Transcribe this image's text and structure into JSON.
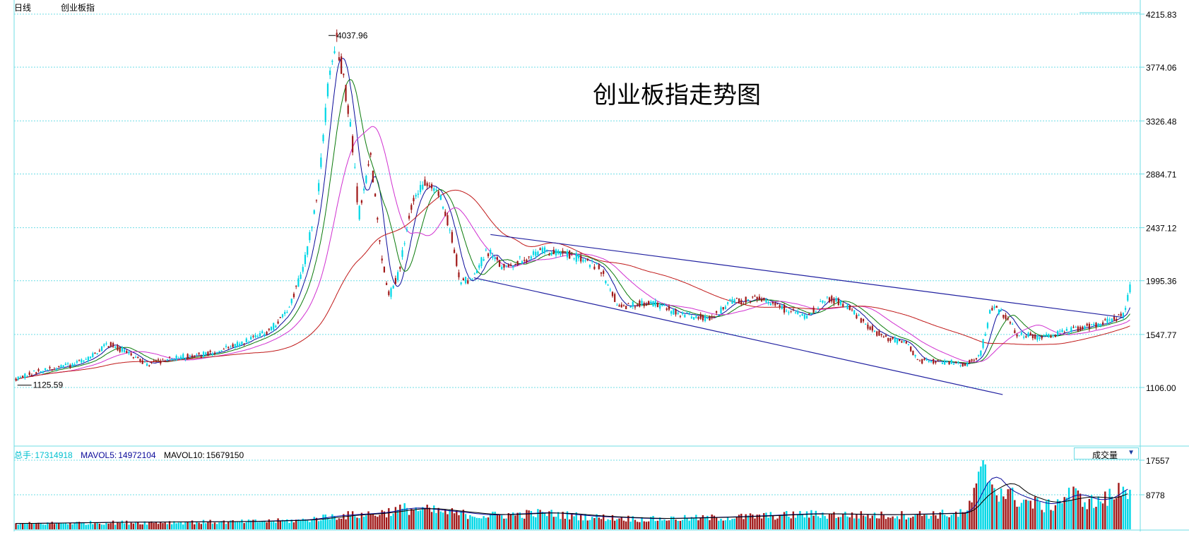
{
  "header": {
    "period": "日线",
    "index_name": "创业板指"
  },
  "volume_info": {
    "total_label": "总手:",
    "total_value": "17314918",
    "mavol5_label": "MAVOL5:",
    "mavol5_value": "14972104",
    "mavol10_label": "MAVOL10:",
    "mavol10_value": "15679150"
  },
  "indicator_select": {
    "label": "成交量",
    "arrow": "▼"
  },
  "colors": {
    "grid": "#6fdde6",
    "frame": "#6fdde6",
    "up": "#00d7e6",
    "down": "#a01818",
    "ma5": "#0a0a9a",
    "ma10": "#0a7a0a",
    "ma20": "#d030d0",
    "ma60": "#c01818",
    "trendline": "#2020a0",
    "text": "#000000"
  },
  "chart_data": {
    "type": "candlestick",
    "title": "创业板指走势图",
    "price_axis_ticks": [
      "4215.83",
      "3774.06",
      "3326.48",
      "2884.71",
      "2437.12",
      "1995.36",
      "1547.77",
      "1106.00"
    ],
    "ylim": [
      630,
      4215.83
    ],
    "high_annotation": {
      "label": "4037.96",
      "value": 4037.96,
      "bar": 415
    },
    "low_annotation": {
      "label": "1125.59",
      "value": 1125.59,
      "bar": 2
    },
    "bar_count": 1480,
    "price_path": [
      [
        0,
        1180
      ],
      [
        40,
        1260
      ],
      [
        75,
        1290
      ],
      [
        95,
        1340
      ],
      [
        120,
        1470
      ],
      [
        150,
        1400
      ],
      [
        170,
        1300
      ],
      [
        195,
        1330
      ],
      [
        215,
        1360
      ],
      [
        240,
        1370
      ],
      [
        275,
        1420
      ],
      [
        300,
        1480
      ],
      [
        325,
        1540
      ],
      [
        340,
        1600
      ],
      [
        365,
        1800
      ],
      [
        385,
        2200
      ],
      [
        400,
        2700
      ],
      [
        412,
        3500
      ],
      [
        425,
        4000
      ],
      [
        433,
        3750
      ],
      [
        445,
        3250
      ],
      [
        455,
        2550
      ],
      [
        470,
        3050
      ],
      [
        485,
        2200
      ],
      [
        495,
        1850
      ],
      [
        510,
        2100
      ],
      [
        520,
        2500
      ],
      [
        530,
        2720
      ],
      [
        543,
        2800
      ],
      [
        560,
        2740
      ],
      [
        575,
        2450
      ],
      [
        590,
        2000
      ],
      [
        605,
        1990
      ],
      [
        625,
        2250
      ],
      [
        645,
        2120
      ],
      [
        680,
        2180
      ],
      [
        700,
        2250
      ],
      [
        740,
        2200
      ],
      [
        775,
        2100
      ],
      [
        800,
        1780
      ],
      [
        840,
        1820
      ],
      [
        880,
        1720
      ],
      [
        920,
        1680
      ],
      [
        950,
        1820
      ],
      [
        990,
        1850
      ],
      [
        1020,
        1760
      ],
      [
        1050,
        1700
      ],
      [
        1075,
        1850
      ],
      [
        1100,
        1800
      ],
      [
        1125,
        1650
      ],
      [
        1150,
        1530
      ],
      [
        1180,
        1480
      ],
      [
        1200,
        1330
      ],
      [
        1230,
        1320
      ],
      [
        1260,
        1300
      ],
      [
        1280,
        1380
      ],
      [
        1295,
        1780
      ],
      [
        1310,
        1720
      ],
      [
        1330,
        1550
      ],
      [
        1360,
        1520
      ],
      [
        1400,
        1580
      ],
      [
        1440,
        1640
      ],
      [
        1470,
        1700
      ],
      [
        1480,
        1980
      ]
    ],
    "volume_axis_ticks": [
      "17557",
      "8778"
    ],
    "volume_max": 17557,
    "volume_path": [
      [
        0,
        1500
      ],
      [
        120,
        1800
      ],
      [
        300,
        2000
      ],
      [
        380,
        2400
      ],
      [
        420,
        3500
      ],
      [
        480,
        4200
      ],
      [
        520,
        5600
      ],
      [
        560,
        4800
      ],
      [
        620,
        3600
      ],
      [
        700,
        4300
      ],
      [
        760,
        3300
      ],
      [
        840,
        2700
      ],
      [
        950,
        3200
      ],
      [
        1050,
        4000
      ],
      [
        1150,
        3700
      ],
      [
        1260,
        4200
      ],
      [
        1272,
        9000
      ],
      [
        1285,
        16500
      ],
      [
        1300,
        11000
      ],
      [
        1330,
        8000
      ],
      [
        1370,
        6000
      ],
      [
        1400,
        9500
      ],
      [
        1430,
        7000
      ],
      [
        1460,
        9000
      ],
      [
        1470,
        12000
      ],
      [
        1480,
        11000
      ]
    ],
    "trendlines": [
      {
        "name": "upper",
        "from": [
          630,
          2380
        ],
        "to": [
          1470,
          1690
        ]
      },
      {
        "name": "lower",
        "from": [
          608,
          2020
        ],
        "to": [
          1310,
          1047
        ]
      }
    ],
    "series": [
      {
        "name": "MA5",
        "period": 5
      },
      {
        "name": "MA10",
        "period": 10
      },
      {
        "name": "MA20",
        "period": 20
      },
      {
        "name": "MA60",
        "period": 60
      }
    ]
  }
}
